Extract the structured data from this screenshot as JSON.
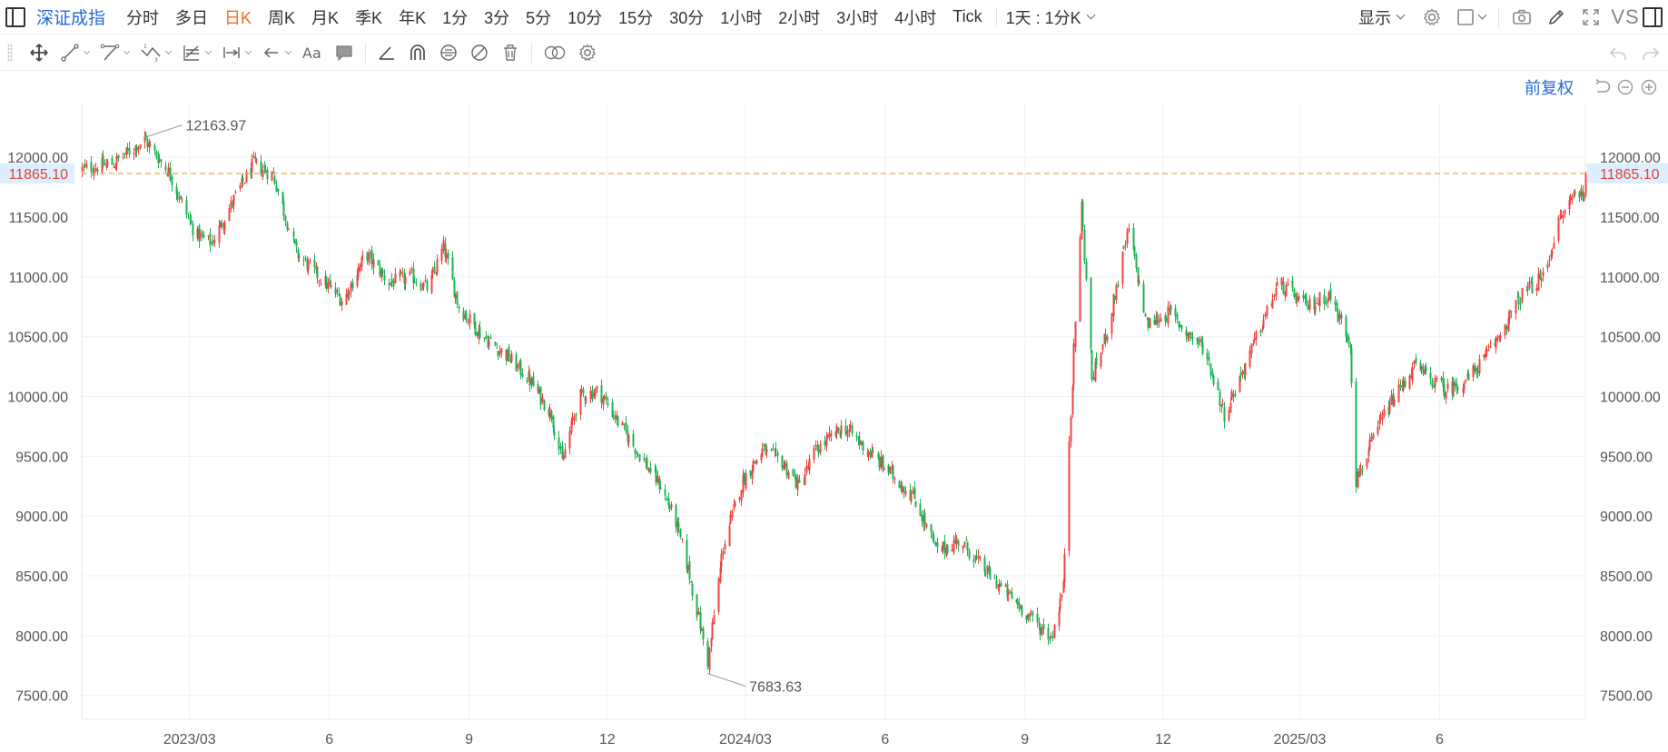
{
  "header": {
    "symbol": "深证成指",
    "periods": [
      {
        "label": "分时",
        "active": false
      },
      {
        "label": "多日",
        "active": false
      },
      {
        "label": "日K",
        "active": true
      },
      {
        "label": "周K",
        "active": false
      },
      {
        "label": "月K",
        "active": false
      },
      {
        "label": "季K",
        "active": false
      },
      {
        "label": "年K",
        "active": false
      },
      {
        "label": "1分",
        "active": false
      },
      {
        "label": "3分",
        "active": false
      },
      {
        "label": "5分",
        "active": false
      },
      {
        "label": "10分",
        "active": false
      },
      {
        "label": "15分",
        "active": false
      },
      {
        "label": "30分",
        "active": false
      },
      {
        "label": "1小时",
        "active": false
      },
      {
        "label": "2小时",
        "active": false
      },
      {
        "label": "3小时",
        "active": false
      },
      {
        "label": "4小时",
        "active": false
      },
      {
        "label": "Tick",
        "active": false
      }
    ],
    "interval_select": "1天 : 1分K",
    "display_label": "显示",
    "vs_label": "VS"
  },
  "adjust": {
    "label": "前复权"
  },
  "colors": {
    "up": "#ef4444",
    "down": "#1db356",
    "accent": "#2169d6",
    "active_period": "#f26b1d",
    "last_price_line": "#f5a25a",
    "last_price_text": "#e0443a",
    "last_price_bg": "#ddeeff",
    "grid": "#f0f1f4",
    "axis_text": "#555555"
  },
  "chart_data": {
    "type": "candlestick",
    "title": "",
    "xlabel": "",
    "ylabel": "",
    "ylim": [
      7300,
      12450
    ],
    "y_ticks": [
      7500,
      8000,
      8500,
      9000,
      9500,
      10000,
      10500,
      11000,
      11500,
      12000
    ],
    "y_tick_labels": [
      "7500.00",
      "8000.00",
      "8500.00",
      "9000.00",
      "9500.00",
      "10000.00",
      "10500.00",
      "11000.00",
      "11500.00",
      "12000.00"
    ],
    "x_range": [
      "2022-12-20",
      "2025-09-05"
    ],
    "x_ticks": [
      {
        "date": "2023-03-01",
        "label": "2023/03"
      },
      {
        "date": "2023-06-01",
        "label": "6"
      },
      {
        "date": "2023-09-01",
        "label": "9"
      },
      {
        "date": "2023-12-01",
        "label": "12"
      },
      {
        "date": "2024-03-01",
        "label": "2024/03"
      },
      {
        "date": "2024-06-01",
        "label": "6"
      },
      {
        "date": "2024-09-01",
        "label": "9"
      },
      {
        "date": "2024-12-01",
        "label": "12"
      },
      {
        "date": "2025-03-01",
        "label": "2025/03"
      },
      {
        "date": "2025-06-01",
        "label": "6"
      }
    ],
    "last_price": 11865.1,
    "last_price_label": "11865.10",
    "annotations": [
      {
        "date": "2023-01-30",
        "value": 12163.97,
        "text": "12163.97"
      },
      {
        "date": "2024-02-05",
        "value": 7683.63,
        "text": "7683.63"
      }
    ],
    "anchors": [
      [
        "2022-12-20",
        11900
      ],
      [
        "2023-01-10",
        11950
      ],
      [
        "2023-01-30",
        12150
      ],
      [
        "2023-02-15",
        11880
      ],
      [
        "2023-03-05",
        11350
      ],
      [
        "2023-03-15",
        11280
      ],
      [
        "2023-04-01",
        11700
      ],
      [
        "2023-04-12",
        11950
      ],
      [
        "2023-04-25",
        11850
      ],
      [
        "2023-05-10",
        11200
      ],
      [
        "2023-05-25",
        11000
      ],
      [
        "2023-06-10",
        10800
      ],
      [
        "2023-06-25",
        11200
      ],
      [
        "2023-07-10",
        10950
      ],
      [
        "2023-07-25",
        11000
      ],
      [
        "2023-08-05",
        10900
      ],
      [
        "2023-08-15",
        11250
      ],
      [
        "2023-08-25",
        10750
      ],
      [
        "2023-09-10",
        10500
      ],
      [
        "2023-09-25",
        10350
      ],
      [
        "2023-10-10",
        10150
      ],
      [
        "2023-10-25",
        9850
      ],
      [
        "2023-11-01",
        9450
      ],
      [
        "2023-11-12",
        10000
      ],
      [
        "2023-11-25",
        10050
      ],
      [
        "2023-12-05",
        9850
      ],
      [
        "2023-12-20",
        9550
      ],
      [
        "2024-01-05",
        9250
      ],
      [
        "2024-01-15",
        8950
      ],
      [
        "2024-01-25",
        8450
      ],
      [
        "2024-02-05",
        7780
      ],
      [
        "2024-02-15",
        8750
      ],
      [
        "2024-02-28",
        9300
      ],
      [
        "2024-03-12",
        9550
      ],
      [
        "2024-03-25",
        9450
      ],
      [
        "2024-04-05",
        9250
      ],
      [
        "2024-04-16",
        9550
      ],
      [
        "2024-05-05",
        9750
      ],
      [
        "2024-05-20",
        9550
      ],
      [
        "2024-06-05",
        9350
      ],
      [
        "2024-06-20",
        9150
      ],
      [
        "2024-07-05",
        8700
      ],
      [
        "2024-07-20",
        8800
      ],
      [
        "2024-08-05",
        8550
      ],
      [
        "2024-08-20",
        8350
      ],
      [
        "2024-09-05",
        8150
      ],
      [
        "2024-09-18",
        7980
      ],
      [
        "2024-09-26",
        8400
      ],
      [
        "2024-09-30",
        9650
      ],
      [
        "2024-10-08",
        11600
      ],
      [
        "2024-10-15",
        10150
      ],
      [
        "2024-10-25",
        10550
      ],
      [
        "2024-11-08",
        11400
      ],
      [
        "2024-11-20",
        10600
      ],
      [
        "2024-12-05",
        10700
      ],
      [
        "2024-12-15",
        10550
      ],
      [
        "2024-12-28",
        10400
      ],
      [
        "2025-01-10",
        9850
      ],
      [
        "2025-01-25",
        10300
      ],
      [
        "2025-02-15",
        10950
      ],
      [
        "2025-03-05",
        10750
      ],
      [
        "2025-03-20",
        10850
      ],
      [
        "2025-04-03",
        10450
      ],
      [
        "2025-04-07",
        9300
      ],
      [
        "2025-04-25",
        9850
      ],
      [
        "2025-05-15",
        10250
      ],
      [
        "2025-06-05",
        10050
      ],
      [
        "2025-06-20",
        10150
      ],
      [
        "2025-07-05",
        10400
      ],
      [
        "2025-07-25",
        10850
      ],
      [
        "2025-08-08",
        11000
      ],
      [
        "2025-08-18",
        11450
      ],
      [
        "2025-08-28",
        11700
      ]
    ]
  }
}
